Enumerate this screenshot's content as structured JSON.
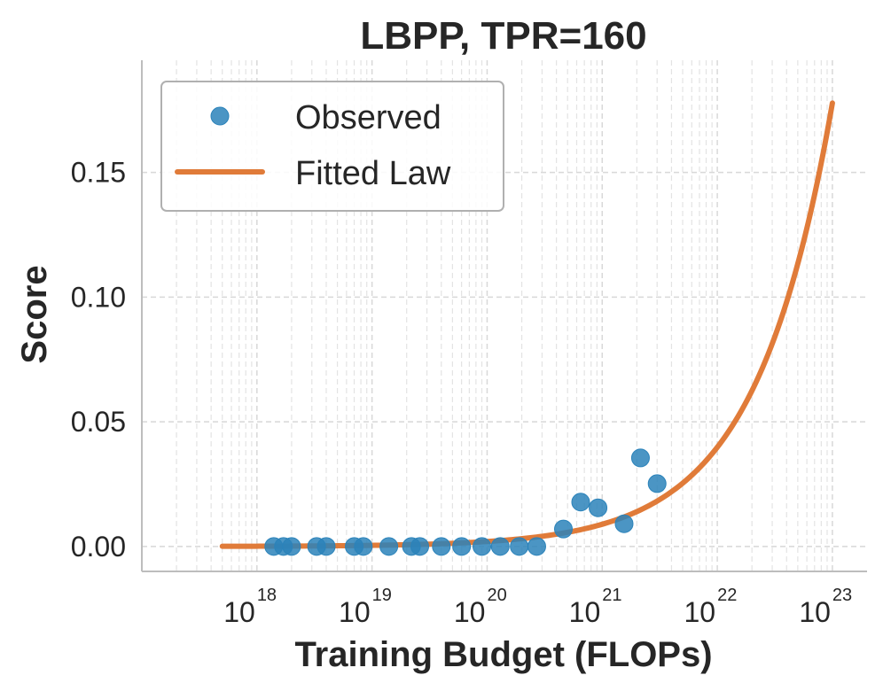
{
  "chart_data": {
    "type": "scatter",
    "title": "LBPP, TPR=160",
    "xlabel": "Training Budget (FLOPs)",
    "ylabel": "Score",
    "xscale": "log",
    "xlim": [
      1e+17,
      2e+23
    ],
    "ylim": [
      -0.01,
      0.195
    ],
    "ytick_values": [
      0.0,
      0.05,
      0.1,
      0.15
    ],
    "ytick_labels": [
      "0.00",
      "0.05",
      "0.10",
      "0.15"
    ],
    "xtick_values": [
      1e+18,
      1e+19,
      1e+20,
      1e+21,
      1e+22,
      1e+23
    ],
    "xtick_base": "10",
    "xtick_exponents": [
      "18",
      "19",
      "20",
      "21",
      "22",
      "23"
    ],
    "grid": true,
    "legend_position": "top-left",
    "colors": {
      "observed": "#2b83ba",
      "fitted": "#e07b39"
    },
    "series": [
      {
        "name": "Observed",
        "kind": "scatter",
        "x": [
          1.4e+18,
          1.7e+18,
          2e+18,
          3.3e+18,
          4e+18,
          7e+18,
          8.4e+18,
          1.4e+19,
          2.2e+19,
          2.6e+19,
          4e+19,
          6e+19,
          9e+19,
          1.3e+20,
          1.9e+20,
          2.7e+20,
          4.6e+20,
          6.5e+20,
          9.2e+20,
          1.55e+21,
          2.15e+21,
          3e+21
        ],
        "y": [
          0,
          0,
          0,
          0,
          0,
          0,
          0,
          0,
          0,
          0,
          0,
          0,
          0,
          0,
          0,
          0,
          0.007,
          0.0178,
          0.0155,
          0.0091,
          0.0355,
          0.0252
        ]
      },
      {
        "name": "Fitted Law",
        "kind": "line",
        "formula": "0.0001 * (x / 1e18)^0.65",
        "x_range": [
          5e+17,
          1e+23
        ]
      }
    ]
  }
}
